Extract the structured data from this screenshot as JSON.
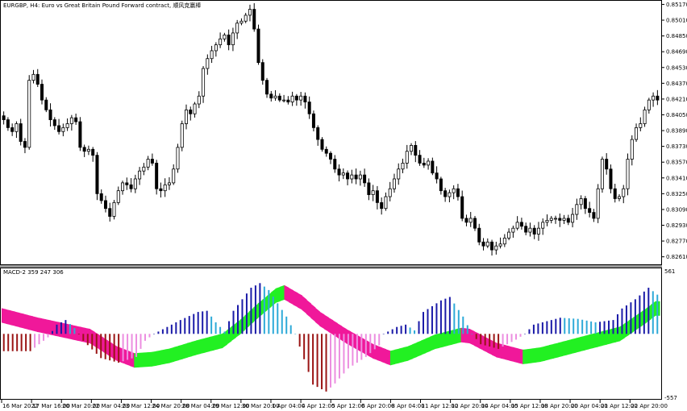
{
  "window": {
    "title": "EURGBP, H4:  Euro vs Great Britain Pound Forward contract, 顺风克赢棒",
    "indicator_label": "MACD-2 359 247 306"
  },
  "colors": {
    "bull_candle": "#ffffff",
    "bear_candle": "#000000",
    "hist_up_strong": "#1a1aa8",
    "hist_up_weak": "#2eaad8",
    "hist_down_strong": "#9a1414",
    "hist_down_weak": "#ec8ee0",
    "signal_rising": "#22f022",
    "signal_falling": "#f0189a",
    "grid": "#c8c8c8"
  },
  "chart_data": [
    {
      "type": "candlestick",
      "title": "EURGBP, H4:  Euro vs Great Britain Pound Forward contract, 顺风克赢棒",
      "price_ticks": [
        "0.85170",
        "0.85010",
        "0.84850",
        "0.84690",
        "0.84530",
        "0.84370",
        "0.84210",
        "0.84050",
        "0.83890",
        "0.83730",
        "0.83570",
        "0.83410",
        "0.83250",
        "0.83090",
        "0.82930",
        "0.82770",
        "0.82610"
      ],
      "ylim": [
        0.8255,
        0.8519
      ],
      "time_ticks": [
        "16 Mar 2022",
        "17 Mar 16:00",
        "20 Mar 20:00",
        "22 Mar 04:00",
        "23 Mar 12:00",
        "24 Mar 20:00",
        "28 Mar 04:00",
        "29 Mar 12:00",
        "30 Mar 20:00",
        "1 Apr 04:00",
        "4 Apr 12:00",
        "5 Apr 12:00",
        "6 Apr 20:00",
        "8 Apr 04:00",
        "11 Apr 12:00",
        "12 Apr 20:00",
        "14 Apr 04:00",
        "15 Apr 12:00",
        "18 Apr 20:00",
        "20 Apr 04:00",
        "21 Apr 12:00",
        "22 Apr 20:00"
      ],
      "close_path": [
        0.84,
        0.8392,
        0.8388,
        0.8396,
        0.8378,
        0.8372,
        0.844,
        0.8446,
        0.8436,
        0.842,
        0.841,
        0.84,
        0.8394,
        0.8388,
        0.8392,
        0.8396,
        0.8402,
        0.8398,
        0.8372,
        0.8368,
        0.837,
        0.8364,
        0.8325,
        0.8318,
        0.831,
        0.8302,
        0.8316,
        0.8328,
        0.8336,
        0.8334,
        0.833,
        0.834,
        0.8348,
        0.8352,
        0.836,
        0.8356,
        0.833,
        0.8328,
        0.8334,
        0.8336,
        0.835,
        0.8372,
        0.8396,
        0.841,
        0.8406,
        0.8416,
        0.8424,
        0.8452,
        0.8462,
        0.847,
        0.8476,
        0.8482,
        0.8486,
        0.8476,
        0.8488,
        0.8498,
        0.85,
        0.8506,
        0.8512,
        0.8492,
        0.8458,
        0.844,
        0.8426,
        0.8422,
        0.8424,
        0.842,
        0.842,
        0.8418,
        0.8424,
        0.842,
        0.8424,
        0.8418,
        0.8406,
        0.8392,
        0.838,
        0.837,
        0.8366,
        0.836,
        0.835,
        0.8344,
        0.8346,
        0.834,
        0.8344,
        0.834,
        0.8344,
        0.8336,
        0.8324,
        0.8328,
        0.8316,
        0.831,
        0.8322,
        0.833,
        0.834,
        0.835,
        0.8356,
        0.8368,
        0.8374,
        0.8364,
        0.8356,
        0.8354,
        0.8358,
        0.8346,
        0.834,
        0.8328,
        0.8322,
        0.8326,
        0.833,
        0.8322,
        0.83,
        0.8296,
        0.83,
        0.829,
        0.8276,
        0.8272,
        0.8276,
        0.8268,
        0.8272,
        0.8274,
        0.828,
        0.8286,
        0.829,
        0.8296,
        0.8292,
        0.8286,
        0.829,
        0.8284,
        0.829,
        0.8296,
        0.8298,
        0.83,
        0.83,
        0.8298,
        0.83,
        0.8296,
        0.8304,
        0.8314,
        0.832,
        0.831,
        0.8306,
        0.83,
        0.833,
        0.836,
        0.835,
        0.833,
        0.832,
        0.8322,
        0.833,
        0.836,
        0.838,
        0.8392,
        0.8396,
        0.841,
        0.842,
        0.8424,
        0.842
      ]
    },
    {
      "type": "bar",
      "title": "MACD-2 359 247 306",
      "ylim": [
        -557,
        561
      ],
      "y_ticks": [
        "561",
        "-557"
      ],
      "histogram_profile": [
        [
          0,
          -150
        ],
        [
          6,
          -150
        ],
        [
          7,
          -120
        ],
        [
          10,
          -30
        ],
        [
          12,
          80
        ],
        [
          14,
          120
        ],
        [
          16,
          50
        ],
        [
          18,
          -60
        ],
        [
          22,
          -210
        ],
        [
          26,
          -250
        ],
        [
          30,
          -200
        ],
        [
          32,
          -60
        ],
        [
          34,
          0
        ],
        [
          36,
          40
        ],
        [
          40,
          120
        ],
        [
          44,
          190
        ],
        [
          46,
          200
        ],
        [
          48,
          100
        ],
        [
          50,
          20
        ],
        [
          52,
          200
        ],
        [
          56,
          400
        ],
        [
          58,
          440
        ],
        [
          60,
          380
        ],
        [
          64,
          150
        ],
        [
          66,
          0
        ],
        [
          68,
          -220
        ],
        [
          70,
          -440
        ],
        [
          73,
          -500
        ],
        [
          75,
          -430
        ],
        [
          78,
          -300
        ],
        [
          82,
          -200
        ],
        [
          85,
          -100
        ],
        [
          86,
          0
        ],
        [
          89,
          60
        ],
        [
          91,
          80
        ],
        [
          93,
          30
        ],
        [
          95,
          190
        ],
        [
          99,
          290
        ],
        [
          101,
          320
        ],
        [
          104,
          150
        ],
        [
          106,
          0
        ],
        [
          108,
          -90
        ],
        [
          112,
          -130
        ],
        [
          116,
          -50
        ],
        [
          118,
          0
        ],
        [
          120,
          80
        ],
        [
          123,
          110
        ],
        [
          126,
          140
        ],
        [
          130,
          130
        ],
        [
          134,
          100
        ],
        [
          138,
          120
        ],
        [
          140,
          220
        ],
        [
          143,
          300
        ],
        [
          146,
          400
        ],
        [
          148,
          340
        ]
      ],
      "signal_profile": [
        [
          0,
          160
        ],
        [
          8,
          80
        ],
        [
          14,
          30
        ],
        [
          20,
          -20
        ],
        [
          26,
          -170
        ],
        [
          30,
          -230
        ],
        [
          34,
          -220
        ],
        [
          38,
          -190
        ],
        [
          44,
          -120
        ],
        [
          50,
          -60
        ],
        [
          54,
          60
        ],
        [
          58,
          200
        ],
        [
          62,
          330
        ],
        [
          64,
          360
        ],
        [
          68,
          270
        ],
        [
          72,
          130
        ],
        [
          78,
          -20
        ],
        [
          84,
          -150
        ],
        [
          88,
          -210
        ],
        [
          92,
          -170
        ],
        [
          98,
          -70
        ],
        [
          104,
          -10
        ],
        [
          106,
          -20
        ],
        [
          112,
          -140
        ],
        [
          118,
          -200
        ],
        [
          122,
          -180
        ],
        [
          128,
          -120
        ],
        [
          134,
          -60
        ],
        [
          140,
          0
        ],
        [
          146,
          160
        ],
        [
          148,
          220
        ]
      ]
    }
  ]
}
